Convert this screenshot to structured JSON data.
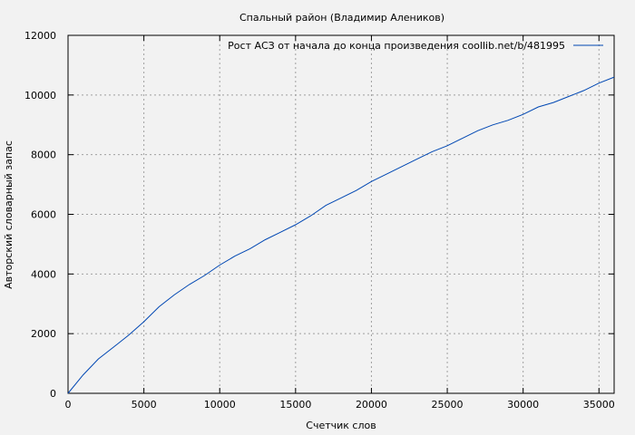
{
  "chart_data": {
    "type": "line",
    "title": "Спальный район (Владимир Алеников)",
    "xlabel": "Счетчик слов",
    "ylabel": "Авторский словарный запас",
    "xlim": [
      0,
      36000
    ],
    "ylim": [
      0,
      12000
    ],
    "xticks": [
      0,
      5000,
      10000,
      15000,
      20000,
      25000,
      30000,
      35000
    ],
    "yticks": [
      0,
      2000,
      4000,
      6000,
      8000,
      10000,
      12000
    ],
    "grid": true,
    "legend_position": "top-right",
    "series": [
      {
        "name": "Рост АСЗ от начала до конца произведения coollib.net/b/481995",
        "color": "#0047b3",
        "x": [
          0,
          1000,
          2000,
          3000,
          4000,
          5000,
          6000,
          7000,
          8000,
          9000,
          10000,
          11000,
          12000,
          13000,
          14000,
          15000,
          16000,
          17000,
          18000,
          19000,
          20000,
          21000,
          22000,
          23000,
          24000,
          25000,
          26000,
          27000,
          28000,
          29000,
          30000,
          31000,
          32000,
          33000,
          34000,
          35000,
          36000
        ],
        "y": [
          0,
          620,
          1150,
          1550,
          1950,
          2400,
          2900,
          3300,
          3650,
          3950,
          4300,
          4600,
          4850,
          5150,
          5400,
          5650,
          5950,
          6300,
          6550,
          6800,
          7100,
          7350,
          7600,
          7850,
          8100,
          8300,
          8550,
          8800,
          9000,
          9150,
          9350,
          9600,
          9750,
          9950,
          10150,
          10400,
          10600
        ]
      }
    ]
  }
}
